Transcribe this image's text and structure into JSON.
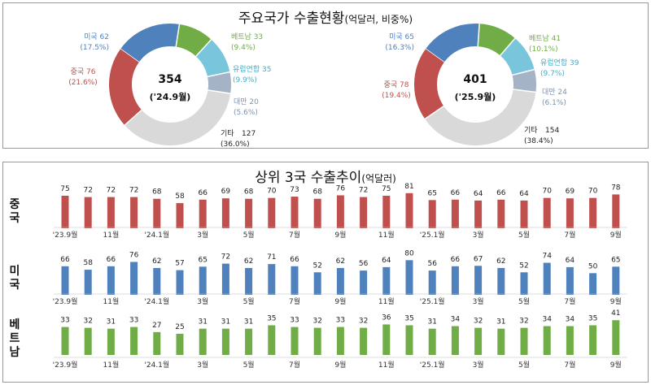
{
  "top_title": {
    "main": "주요국가 수출현황",
    "sub": "(억달러, 비중%)"
  },
  "bottom_title": {
    "main": "상위 3국 수출추이",
    "sub": "(억달러)"
  },
  "colors": {
    "china": "#c0504d",
    "usa": "#4f81bd",
    "vietnam": "#70ad47",
    "eu": "#79c6dc",
    "taiwan": "#a5b3c6",
    "other": "#d9d9d9"
  },
  "chart_data": [
    {
      "type": "pie",
      "center_value": "354",
      "center_label": "('24.9월)",
      "slices": [
        {
          "name": "미국",
          "value": 62,
          "share": "(17.5%)",
          "color": "#4f81bd"
        },
        {
          "name": "베트남",
          "value": 33,
          "share": "(9.4%)",
          "color": "#70ad47"
        },
        {
          "name": "유럽연합",
          "value": 35,
          "share": "(9.9%)",
          "color": "#79c6dc"
        },
        {
          "name": "대만",
          "value": 20,
          "share": "(5.6%)",
          "color": "#a5b3c6"
        },
        {
          "name": "기타",
          "value": 127,
          "share": "(36.0%)",
          "color": "#d9d9d9"
        },
        {
          "name": "중국",
          "value": 76,
          "share": "(21.6%)",
          "color": "#c0504d"
        }
      ]
    },
    {
      "type": "pie",
      "center_value": "401",
      "center_label": "('25.9월)",
      "slices": [
        {
          "name": "미국",
          "value": 65,
          "share": "(16.3%)",
          "color": "#4f81bd"
        },
        {
          "name": "베트남",
          "value": 41,
          "share": "(10.1%)",
          "color": "#70ad47"
        },
        {
          "name": "유럽연합",
          "value": 39,
          "share": "(9.7%)",
          "color": "#79c6dc"
        },
        {
          "name": "대만",
          "value": 24,
          "share": "(6.1%)",
          "color": "#a5b3c6"
        },
        {
          "name": "기타",
          "value": 154,
          "share": "(38.4%)",
          "color": "#d9d9d9"
        },
        {
          "name": "중국",
          "value": 78,
          "share": "(19.4%)",
          "color": "#c0504d"
        }
      ]
    },
    {
      "type": "bar",
      "name": "중국",
      "color": "#c0504d",
      "categories": [
        "'23.9월",
        "",
        "11월",
        "",
        "'24.1월",
        "",
        "3월",
        "",
        "5월",
        "",
        "7월",
        "",
        "9월",
        "",
        "11월",
        "",
        "'25.1월",
        "",
        "3월",
        "",
        "5월",
        "",
        "7월",
        "",
        "9월"
      ],
      "values": [
        75,
        72,
        72,
        72,
        68,
        58,
        66,
        69,
        68,
        70,
        73,
        68,
        76,
        72,
        75,
        81,
        65,
        66,
        64,
        66,
        64,
        70,
        69,
        70,
        78
      ]
    },
    {
      "type": "bar",
      "name": "미국",
      "color": "#4f81bd",
      "categories": [
        "'23.9월",
        "",
        "11월",
        "",
        "'24.1월",
        "",
        "3월",
        "",
        "5월",
        "",
        "7월",
        "",
        "9월",
        "",
        "11월",
        "",
        "'25.1월",
        "",
        "3월",
        "",
        "5월",
        "",
        "7월",
        "",
        "9월"
      ],
      "values": [
        66,
        58,
        66,
        76,
        62,
        57,
        65,
        72,
        62,
        71,
        66,
        52,
        62,
        56,
        64,
        80,
        56,
        66,
        67,
        62,
        52,
        74,
        64,
        50,
        65
      ]
    },
    {
      "type": "bar",
      "name": "베트남",
      "color": "#70ad47",
      "categories": [
        "'23.9월",
        "",
        "11월",
        "",
        "'24.1월",
        "",
        "3월",
        "",
        "5월",
        "",
        "7월",
        "",
        "9월",
        "",
        "11월",
        "",
        "'25.1월",
        "",
        "3월",
        "",
        "5월",
        "",
        "7월",
        "",
        "9월"
      ],
      "values": [
        33,
        32,
        31,
        33,
        27,
        25,
        31,
        31,
        31,
        35,
        33,
        32,
        33,
        32,
        36,
        35,
        31,
        34,
        32,
        31,
        32,
        34,
        34,
        35,
        41
      ]
    }
  ]
}
